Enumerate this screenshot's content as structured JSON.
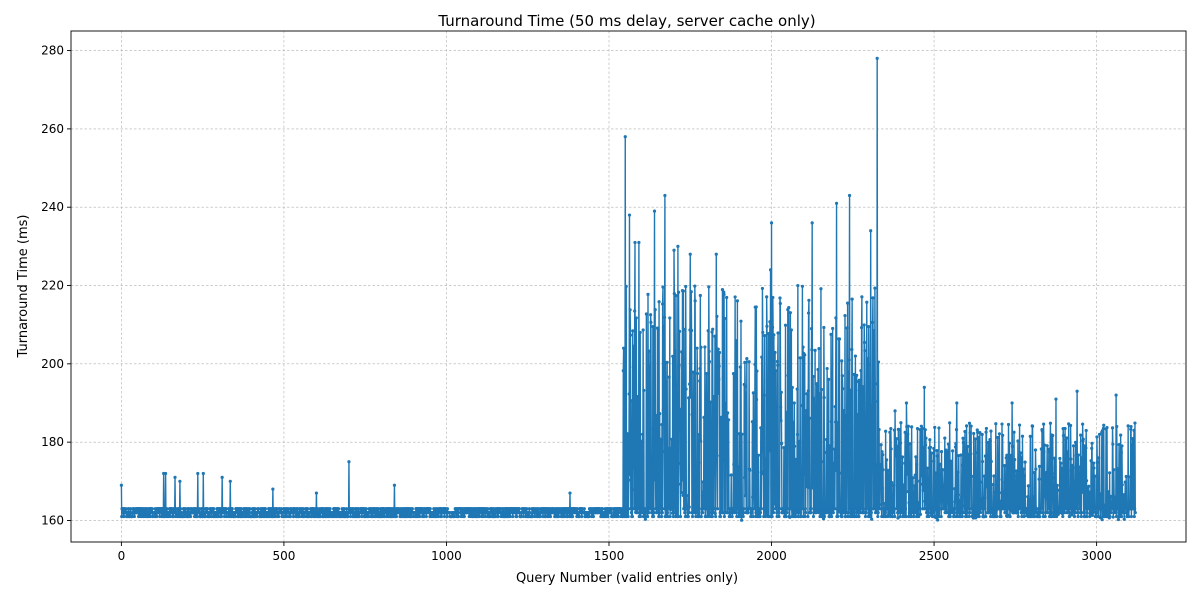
{
  "chart_data": {
    "type": "line",
    "title": "Turnaround Time (50 ms delay, server cache only)",
    "xlabel": "Query Number (valid entries only)",
    "ylabel": "Turnaround Time (ms)",
    "xlim": [
      -155,
      3275
    ],
    "ylim": [
      154.5,
      285
    ],
    "xticks": [
      0,
      500,
      1000,
      1500,
      2000,
      2500,
      3000
    ],
    "yticks": [
      160,
      180,
      200,
      220,
      240,
      260,
      280
    ],
    "grid": true,
    "color": "#1f77b4",
    "marker": "dot",
    "n_points": 3120,
    "regimes": [
      {
        "x_range": [
          0,
          1540
        ],
        "baseline": 162,
        "typical_range": [
          160,
          165
        ]
      },
      {
        "x_range": [
          1540,
          2330
        ],
        "baseline": 162,
        "typical_range": [
          160,
          220
        ]
      },
      {
        "x_range": [
          2330,
          3120
        ],
        "baseline": 162,
        "typical_range": [
          160,
          185
        ]
      }
    ],
    "peaks": [
      {
        "x": 0,
        "y": 169
      },
      {
        "x": 130,
        "y": 172
      },
      {
        "x": 136,
        "y": 172
      },
      {
        "x": 165,
        "y": 171
      },
      {
        "x": 180,
        "y": 170
      },
      {
        "x": 235,
        "y": 172
      },
      {
        "x": 252,
        "y": 172
      },
      {
        "x": 310,
        "y": 171
      },
      {
        "x": 335,
        "y": 170
      },
      {
        "x": 466,
        "y": 168
      },
      {
        "x": 600,
        "y": 167
      },
      {
        "x": 700,
        "y": 175
      },
      {
        "x": 840,
        "y": 169
      },
      {
        "x": 1380,
        "y": 167
      },
      {
        "x": 1545,
        "y": 204
      },
      {
        "x": 1550,
        "y": 258
      },
      {
        "x": 1563,
        "y": 238
      },
      {
        "x": 1580,
        "y": 231
      },
      {
        "x": 1592,
        "y": 231
      },
      {
        "x": 1640,
        "y": 239
      },
      {
        "x": 1672,
        "y": 243
      },
      {
        "x": 1700,
        "y": 229
      },
      {
        "x": 1712,
        "y": 230
      },
      {
        "x": 1750,
        "y": 228
      },
      {
        "x": 1830,
        "y": 228
      },
      {
        "x": 1997,
        "y": 224
      },
      {
        "x": 2000,
        "y": 236
      },
      {
        "x": 2125,
        "y": 236
      },
      {
        "x": 2200,
        "y": 241
      },
      {
        "x": 2240,
        "y": 243
      },
      {
        "x": 2305,
        "y": 234
      },
      {
        "x": 2325,
        "y": 278
      },
      {
        "x": 2380,
        "y": 188
      },
      {
        "x": 2415,
        "y": 190
      },
      {
        "x": 2470,
        "y": 194
      },
      {
        "x": 2570,
        "y": 190
      },
      {
        "x": 2740,
        "y": 190
      },
      {
        "x": 2875,
        "y": 191
      },
      {
        "x": 2940,
        "y": 193
      },
      {
        "x": 3060,
        "y": 192
      },
      {
        "x": 3115,
        "y": 183
      }
    ]
  }
}
